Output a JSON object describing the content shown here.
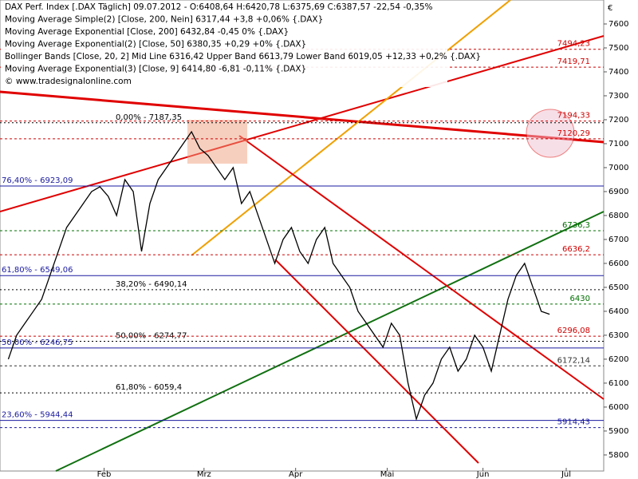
{
  "chart_data": {
    "type": "line",
    "legend_lines": [
      "DAX Perf. Index [.DAX Täglich] 09.07.2012 - O:6408,64 H:6420,78 L:6375,69 C:6387,57 -22,54 -0,35%",
      "Moving Average Simple(2) [Close, 200, Nein] 6317,44 +3,8 +0,06% {.DAX}",
      "Moving Average Exponential [Close, 200] 6432,84 -0,45 0% {.DAX}",
      "Moving Average Exponential(2) [Close, 50] 6380,35 +0,29 +0% {.DAX}",
      "Bollinger Bands [Close, 20, 2] Mid Line 6316,42 Upper Band 6613,79 Lower Band 6019,05 +12,33 +0,2% {.DAX}",
      "Moving Average Exponential(3) [Close, 9] 6414,80 -6,81 -0,11% {.DAX}",
      "© www.tradesignalonline.com"
    ],
    "currency": "€",
    "x": [
      0,
      2,
      4,
      6,
      8,
      10,
      12,
      14,
      16,
      18,
      20,
      22,
      24,
      26,
      28,
      30,
      32,
      34,
      36,
      38,
      40,
      42,
      44,
      46,
      48,
      50,
      52,
      54,
      56,
      58,
      60,
      62,
      64,
      66,
      68,
      70,
      72,
      74,
      76,
      78,
      80,
      82,
      84,
      86,
      88,
      90,
      92,
      94,
      96,
      98,
      100,
      102,
      104,
      106,
      108,
      110,
      112,
      114,
      116,
      118,
      120,
      122,
      124,
      126,
      128,
      130
    ],
    "values": [
      6200,
      6300,
      6350,
      6400,
      6450,
      6550,
      6650,
      6750,
      6800,
      6850,
      6900,
      6920,
      6880,
      6800,
      6950,
      6900,
      6650,
      6850,
      6950,
      7000,
      7050,
      7100,
      7150,
      7080,
      7050,
      7000,
      6950,
      7000,
      6850,
      6900,
      6800,
      6700,
      6600,
      6700,
      6750,
      6650,
      6600,
      6700,
      6750,
      6600,
      6550,
      6500,
      6400,
      6350,
      6300,
      6250,
      6350,
      6300,
      6100,
      5950,
      6050,
      6100,
      6200,
      6250,
      6150,
      6200,
      6300,
      6250,
      6150,
      6300,
      6450,
      6550,
      6600,
      6500,
      6400,
      6387.57
    ],
    "color": "#000000",
    "xlim": [
      -2,
      143
    ],
    "xticks": [
      {
        "value": 23,
        "label": "Feb"
      },
      {
        "value": 47,
        "label": "Mrz"
      },
      {
        "value": 69,
        "label": "Apr"
      },
      {
        "value": 91,
        "label": "Mai"
      },
      {
        "value": 114,
        "label": "Jun"
      },
      {
        "value": 134,
        "label": "Jul"
      }
    ],
    "ylim": [
      5733,
      7700
    ],
    "yticks": [
      5800,
      5900,
      6000,
      6100,
      6200,
      6300,
      6400,
      6500,
      6600,
      6700,
      6800,
      6900,
      7000,
      7100,
      7200,
      7300,
      7400,
      7500,
      7600
    ],
    "fib_levels": [
      {
        "value": 7187.35,
        "label": "0,00% - 7187,35",
        "color": "#000000"
      },
      {
        "value": 6490.14,
        "label": "38,20% - 6490,14",
        "color": "#000000"
      },
      {
        "value": 6274.77,
        "label": "50,00% - 6274,77",
        "color": "#000000"
      },
      {
        "value": 6059.4,
        "label": "61,80% - 6059,4",
        "color": "#000000"
      }
    ],
    "left_levels": [
      {
        "value": 6923.09,
        "label": "76,40% - 6923,09",
        "color": "#1a1aa0"
      },
      {
        "value": 6549.06,
        "label": "61,80% - 6549,06",
        "color": "#1a1aa0"
      },
      {
        "value": 6246.75,
        "label": "50,00% - 6246,75",
        "color": "#1a1aa0"
      },
      {
        "value": 5944.44,
        "label": "23,60% - 5944,44",
        "color": "#1a1aa0"
      }
    ],
    "price_marks": [
      {
        "value": 7494.23,
        "label": "7494,23",
        "color": "#d00000"
      },
      {
        "value": 7419.71,
        "label": "7419,71",
        "color": "#d00000"
      },
      {
        "value": 7194.33,
        "label": "7194,33",
        "color": "#d00000"
      },
      {
        "value": 7120.29,
        "label": "7120,29",
        "color": "#d00000"
      },
      {
        "value": 6736.3,
        "label": "6736,3",
        "color": "#007000"
      },
      {
        "value": 6636.2,
        "label": "6636,2",
        "color": "#d00000"
      },
      {
        "value": 6430,
        "label": "6430",
        "color": "#007000"
      },
      {
        "value": 6296.08,
        "label": "6296,08",
        "color": "#d00000"
      },
      {
        "value": 6172.14,
        "label": "6172,14",
        "color": "#333333"
      },
      {
        "value": 5914.43,
        "label": "5914,43",
        "color": "#1a1aa0"
      }
    ]
  }
}
